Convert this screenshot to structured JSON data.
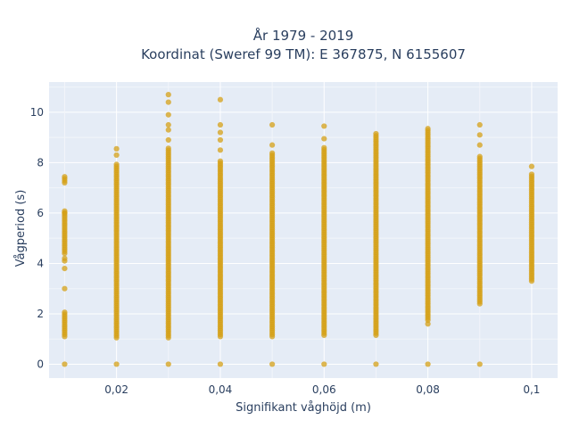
{
  "chart_data": {
    "type": "scatter",
    "title_lines": [
      "År 1979 - 2019",
      "Koordinat (Sweref 99 TM): E 367875, N 6155607"
    ],
    "xlabel": "Signifikant våghöjd (m)",
    "ylabel": "Vågperiod (s)",
    "xlim": [
      0.007,
      0.105
    ],
    "ylim": [
      -0.55,
      11.2
    ],
    "x_ticks": [
      0.02,
      0.04,
      0.06,
      0.08,
      0.1
    ],
    "x_tick_labels": [
      "0,02",
      "0,04",
      "0,06",
      "0,08",
      "0,1"
    ],
    "y_ticks": [
      0,
      2,
      4,
      6,
      8,
      10
    ],
    "y_tick_labels": [
      "0",
      "2",
      "4",
      "6",
      "8",
      "10"
    ],
    "marker_color": "#d4a017",
    "background": "#e5ecf6",
    "grid": true,
    "columns": [
      {
        "x": 0.01,
        "dense_ranges": [
          [
            1.1,
            2.1
          ],
          [
            4.4,
            6.1
          ],
          [
            7.2,
            7.5
          ]
        ],
        "extra_y": [
          0,
          3.0,
          3.8,
          4.1,
          4.2,
          6.0
        ]
      },
      {
        "x": 0.02,
        "dense_ranges": [
          [
            1.05,
            8.0
          ]
        ],
        "extra_y": [
          0,
          8.3,
          8.55
        ]
      },
      {
        "x": 0.03,
        "dense_ranges": [
          [
            1.05,
            8.6
          ]
        ],
        "extra_y": [
          0,
          8.9,
          9.3,
          9.5,
          9.9,
          10.4,
          10.7
        ]
      },
      {
        "x": 0.04,
        "dense_ranges": [
          [
            1.1,
            8.1
          ]
        ],
        "extra_y": [
          0,
          8.5,
          8.9,
          9.2,
          9.5,
          10.5
        ]
      },
      {
        "x": 0.05,
        "dense_ranges": [
          [
            1.1,
            8.45
          ]
        ],
        "extra_y": [
          0,
          8.7,
          9.5
        ]
      },
      {
        "x": 0.06,
        "dense_ranges": [
          [
            1.15,
            8.6
          ]
        ],
        "extra_y": [
          0,
          8.95,
          9.45
        ]
      },
      {
        "x": 0.07,
        "dense_ranges": [
          [
            1.15,
            9.2
          ]
        ],
        "extra_y": [
          0
        ]
      },
      {
        "x": 0.08,
        "dense_ranges": [
          [
            1.75,
            9.4
          ]
        ],
        "extra_y": [
          0,
          1.6
        ]
      },
      {
        "x": 0.09,
        "dense_ranges": [
          [
            2.4,
            8.3
          ]
        ],
        "extra_y": [
          0,
          8.7,
          9.1,
          9.5
        ]
      },
      {
        "x": 0.1,
        "dense_ranges": [
          [
            3.3,
            7.6
          ]
        ],
        "extra_y": [
          7.85
        ]
      }
    ]
  }
}
